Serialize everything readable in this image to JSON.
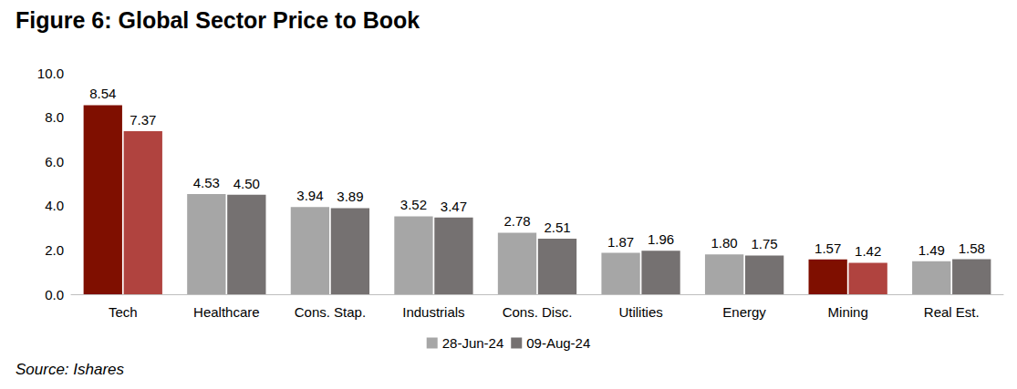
{
  "chart_data": {
    "type": "bar",
    "title": "Figure 6: Global Sector Price to Book",
    "source": "Source: Ishares",
    "categories": [
      "Tech",
      "Healthcare",
      "Cons. Stap.",
      "Industrials",
      "Cons. Disc.",
      "Utilities",
      "Energy",
      "Mining",
      "Real Est."
    ],
    "series": [
      {
        "name": "28-Jun-24",
        "color": "#a6a6a6",
        "colors": [
          "#7f0f00",
          "#a6a6a6",
          "#a6a6a6",
          "#a6a6a6",
          "#a6a6a6",
          "#a6a6a6",
          "#a6a6a6",
          "#7f0f00",
          "#a6a6a6"
        ],
        "values": [
          8.54,
          4.53,
          3.94,
          3.52,
          2.78,
          1.87,
          1.8,
          1.57,
          1.49
        ],
        "value_labels": [
          "8.54",
          "4.53",
          "3.94",
          "3.52",
          "2.78",
          "1.87",
          "1.80",
          "1.57",
          "1.49"
        ]
      },
      {
        "name": "09-Aug-24",
        "color": "#757171",
        "colors": [
          "#b0433f",
          "#757171",
          "#757171",
          "#757171",
          "#757171",
          "#757171",
          "#757171",
          "#b0433f",
          "#757171"
        ],
        "values": [
          7.37,
          4.5,
          3.89,
          3.47,
          2.51,
          1.96,
          1.75,
          1.42,
          1.58
        ],
        "value_labels": [
          "7.37",
          "4.50",
          "3.89",
          "3.47",
          "2.51",
          "1.96",
          "1.75",
          "1.42",
          "1.58"
        ]
      }
    ],
    "ylim": [
      0,
      10
    ],
    "yticks": [
      {
        "value": 0,
        "label": "0.0"
      },
      {
        "value": 2,
        "label": "2.0"
      },
      {
        "value": 4,
        "label": "4.0"
      },
      {
        "value": 6,
        "label": "6.0"
      },
      {
        "value": 8,
        "label": "8.0"
      },
      {
        "value": 10,
        "label": "10.0"
      }
    ],
    "grid": false,
    "legend": "bottom",
    "data_labels": true
  }
}
